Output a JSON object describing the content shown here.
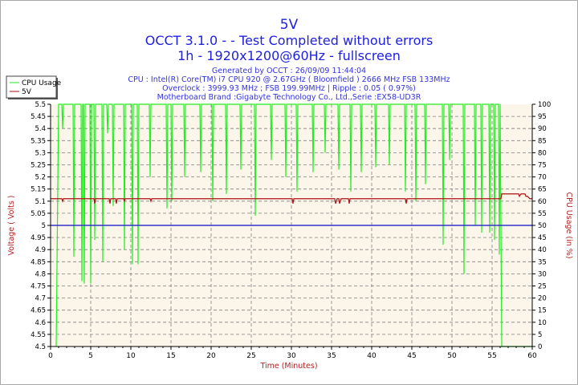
{
  "header": {
    "title": "5V",
    "subtitle": "OCCT 3.1.0 -  - Test Completed without errors",
    "subtitle2": "1h - 1920x1200@60Hz - fullscreen",
    "info": [
      "Generated by OCCT : 26/09/09 11:44:04",
      "CPU : Intel(R) Core(TM) i7 CPU 920 @ 2.67GHz ( Bloomfield ) 2666 MHz FSB 133MHz",
      "Overclock : 3999.93 MHz ; FSB 199.99MHz | Ripple : 0.05 ( 0.97%)",
      "Motherboard Brand :Gigabyte Technology Co., Ltd.,Serie :EX58-UD3R"
    ]
  },
  "colors": {
    "title": "#2020e0",
    "info": "#3333dd",
    "axis_label": "#b22222",
    "cpu": "#22ee22",
    "voltage": "#aa1111",
    "reference": "#3333cc",
    "plot_bg": "#fcf6ea",
    "grid": "#808080"
  },
  "chart_data": {
    "type": "line",
    "xlabel": "Time (Minutes)",
    "ylabel": "Voltage ( Volts )",
    "ylabel_right": "CPU Usage (in %)",
    "xlim": [
      0,
      60
    ],
    "ylim": [
      4.5,
      5.5
    ],
    "ylim_right": [
      0,
      100
    ],
    "x_ticks": [
      "0",
      "5",
      "10",
      "15",
      "20",
      "25",
      "30",
      "35",
      "40",
      "45",
      "50",
      "55",
      "60"
    ],
    "y_ticks": [
      "4.5",
      "4.55",
      "4.6",
      "4.65",
      "4.7",
      "4.75",
      "4.8",
      "4.85",
      "4.9",
      "4.95",
      "5",
      "5.05",
      "5.1",
      "5.15",
      "5.2",
      "5.25",
      "5.3",
      "5.35",
      "5.4",
      "5.45",
      "5.5"
    ],
    "y_ticks_right": [
      "0",
      "5",
      "10",
      "15",
      "20",
      "25",
      "30",
      "35",
      "40",
      "45",
      "50",
      "55",
      "60",
      "65",
      "70",
      "75",
      "80",
      "85",
      "90",
      "95",
      "100"
    ],
    "grid": true,
    "legend": "top-left",
    "reference_line": 5.0,
    "series": [
      {
        "name": "CPU Usage",
        "axis": "right",
        "points": [
          [
            0.7,
            0
          ],
          [
            1.0,
            100
          ],
          [
            1.4,
            100
          ],
          [
            1.5,
            90
          ],
          [
            1.6,
            100
          ],
          [
            2.8,
            100
          ],
          [
            2.9,
            37
          ],
          [
            3.0,
            100
          ],
          [
            3.8,
            100
          ],
          [
            3.9,
            27
          ],
          [
            4.0,
            100
          ],
          [
            4.1,
            100
          ],
          [
            4.2,
            26
          ],
          [
            4.3,
            100
          ],
          [
            4.9,
            100
          ],
          [
            5.0,
            26
          ],
          [
            5.1,
            100
          ],
          [
            5.4,
            100
          ],
          [
            5.5,
            44
          ],
          [
            5.6,
            100
          ],
          [
            6.4,
            100
          ],
          [
            6.5,
            35
          ],
          [
            6.6,
            100
          ],
          [
            7.0,
            100
          ],
          [
            7.1,
            88
          ],
          [
            7.2,
            100
          ],
          [
            7.7,
            100
          ],
          [
            7.8,
            58
          ],
          [
            7.9,
            100
          ],
          [
            9.1,
            100
          ],
          [
            9.2,
            40
          ],
          [
            9.3,
            100
          ],
          [
            10.1,
            100
          ],
          [
            10.2,
            34
          ],
          [
            10.3,
            100
          ],
          [
            10.8,
            100
          ],
          [
            10.9,
            34
          ],
          [
            11.0,
            100
          ],
          [
            12.3,
            100
          ],
          [
            12.4,
            70
          ],
          [
            12.5,
            100
          ],
          [
            14.4,
            100
          ],
          [
            14.5,
            57
          ],
          [
            14.6,
            100
          ],
          [
            15.0,
            100
          ],
          [
            15.1,
            60
          ],
          [
            15.2,
            100
          ],
          [
            16.6,
            100
          ],
          [
            16.7,
            70
          ],
          [
            16.8,
            100
          ],
          [
            18.6,
            100
          ],
          [
            18.7,
            72
          ],
          [
            18.8,
            100
          ],
          [
            20.1,
            100
          ],
          [
            20.2,
            60
          ],
          [
            20.3,
            100
          ],
          [
            21.8,
            100
          ],
          [
            21.9,
            63
          ],
          [
            22.0,
            100
          ],
          [
            23.6,
            100
          ],
          [
            23.7,
            73
          ],
          [
            23.8,
            100
          ],
          [
            25.4,
            100
          ],
          [
            25.5,
            54
          ],
          [
            25.6,
            100
          ],
          [
            27.4,
            100
          ],
          [
            27.5,
            77
          ],
          [
            27.6,
            100
          ],
          [
            29.2,
            100
          ],
          [
            29.3,
            70
          ],
          [
            29.4,
            100
          ],
          [
            30.6,
            100
          ],
          [
            30.7,
            64
          ],
          [
            30.8,
            100
          ],
          [
            32.6,
            100
          ],
          [
            32.7,
            72
          ],
          [
            32.8,
            100
          ],
          [
            34.1,
            100
          ],
          [
            34.2,
            80
          ],
          [
            34.3,
            100
          ],
          [
            35.8,
            100
          ],
          [
            35.9,
            73
          ],
          [
            36.0,
            100
          ],
          [
            37.3,
            100
          ],
          [
            37.4,
            64
          ],
          [
            37.5,
            100
          ],
          [
            38.6,
            100
          ],
          [
            38.7,
            72
          ],
          [
            38.8,
            100
          ],
          [
            40.4,
            100
          ],
          [
            40.5,
            74
          ],
          [
            40.6,
            100
          ],
          [
            42.1,
            100
          ],
          [
            42.2,
            75
          ],
          [
            42.3,
            100
          ],
          [
            44.1,
            100
          ],
          [
            44.2,
            64
          ],
          [
            44.3,
            100
          ],
          [
            45.4,
            100
          ],
          [
            45.5,
            60
          ],
          [
            45.6,
            100
          ],
          [
            46.6,
            100
          ],
          [
            46.7,
            67
          ],
          [
            46.8,
            100
          ],
          [
            48.8,
            100
          ],
          [
            48.9,
            42
          ],
          [
            49.0,
            100
          ],
          [
            49.6,
            100
          ],
          [
            49.7,
            77
          ],
          [
            49.8,
            100
          ],
          [
            51.4,
            100
          ],
          [
            51.5,
            30
          ],
          [
            51.6,
            100
          ],
          [
            52.8,
            100
          ],
          [
            52.9,
            50
          ],
          [
            53.0,
            100
          ],
          [
            53.6,
            100
          ],
          [
            53.7,
            47
          ],
          [
            53.8,
            100
          ],
          [
            54.6,
            100
          ],
          [
            54.7,
            47
          ],
          [
            54.8,
            100
          ],
          [
            55.2,
            100
          ],
          [
            55.3,
            44
          ],
          [
            55.4,
            100
          ],
          [
            55.8,
            100
          ],
          [
            55.9,
            38
          ],
          [
            56.0,
            100
          ],
          [
            56.2,
            0
          ],
          [
            60,
            0
          ]
        ]
      },
      {
        "name": "5V",
        "axis": "left",
        "points": [
          [
            0,
            5.11
          ],
          [
            1.4,
            5.11
          ],
          [
            1.5,
            5.1
          ],
          [
            1.6,
            5.11
          ],
          [
            5.4,
            5.11
          ],
          [
            5.5,
            5.09
          ],
          [
            5.6,
            5.11
          ],
          [
            7.3,
            5.11
          ],
          [
            7.4,
            5.09
          ],
          [
            7.5,
            5.11
          ],
          [
            8.1,
            5.11
          ],
          [
            8.2,
            5.09
          ],
          [
            8.3,
            5.11
          ],
          [
            9.1,
            5.11
          ],
          [
            9.2,
            5.1
          ],
          [
            9.3,
            5.11
          ],
          [
            12.4,
            5.11
          ],
          [
            12.5,
            5.1
          ],
          [
            12.6,
            5.11
          ],
          [
            30.1,
            5.11
          ],
          [
            30.2,
            5.09
          ],
          [
            30.3,
            5.11
          ],
          [
            35.4,
            5.11
          ],
          [
            35.5,
            5.09
          ],
          [
            35.7,
            5.11
          ],
          [
            35.9,
            5.11
          ],
          [
            36.0,
            5.09
          ],
          [
            36.2,
            5.11
          ],
          [
            37.1,
            5.11
          ],
          [
            37.2,
            5.09
          ],
          [
            37.3,
            5.11
          ],
          [
            44.2,
            5.11
          ],
          [
            44.3,
            5.09
          ],
          [
            44.4,
            5.11
          ],
          [
            56.1,
            5.11
          ],
          [
            56.2,
            5.13
          ],
          [
            58.3,
            5.13
          ],
          [
            58.4,
            5.12
          ],
          [
            58.6,
            5.13
          ],
          [
            59.1,
            5.13
          ],
          [
            59.2,
            5.12
          ],
          [
            59.4,
            5.12
          ],
          [
            59.7,
            5.11
          ],
          [
            60,
            5.11
          ]
        ]
      }
    ]
  }
}
